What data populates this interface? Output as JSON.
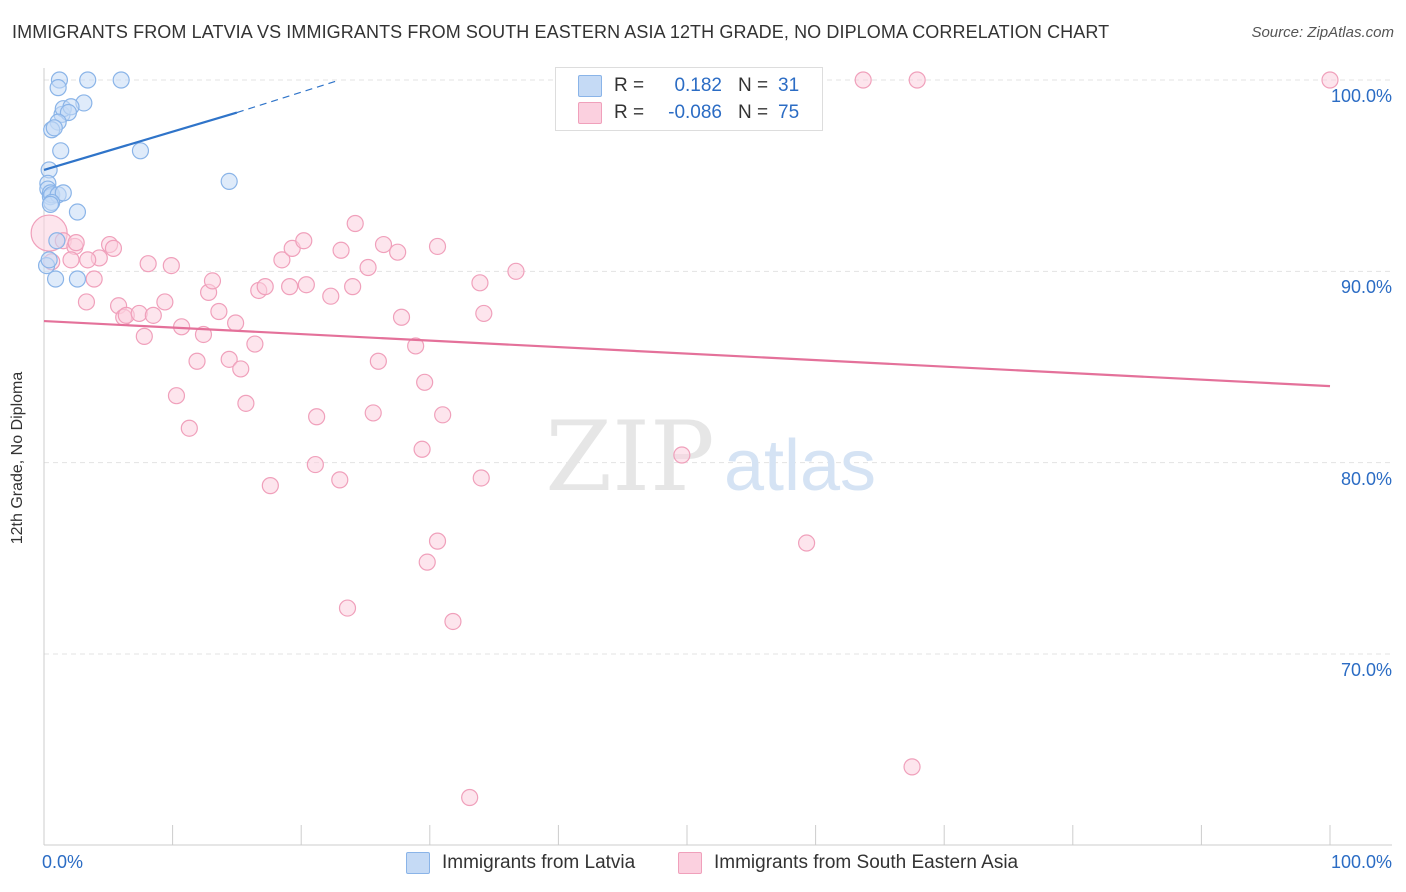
{
  "title": "IMMIGRANTS FROM LATVIA VS IMMIGRANTS FROM SOUTH EASTERN ASIA 12TH GRADE, NO DIPLOMA CORRELATION CHART",
  "source": "Source: ZipAtlas.com",
  "watermark": {
    "zip": "ZIP",
    "atlas": "atlas"
  },
  "legend": {
    "r_label": "R =",
    "n_label": "N =",
    "rows": [
      {
        "name": "Immigrants from Latvia",
        "r": "0.182",
        "n": "31",
        "color": "#8ab4e8",
        "fill": "#c5daf5"
      },
      {
        "name": "Immigrants from South Eastern Asia",
        "r": "-0.086",
        "n": "75",
        "color": "#f0a0bb",
        "fill": "#fbd0df"
      }
    ]
  },
  "chart_data": {
    "type": "scatter",
    "title": "IMMIGRANTS FROM LATVIA VS IMMIGRANTS FROM SOUTH EASTERN ASIA 12TH GRADE, NO DIPLOMA CORRELATION CHART",
    "xlabel": "",
    "ylabel": "12th Grade, No Diploma",
    "xlim": [
      0,
      100
    ],
    "ylim": [
      60.5,
      102
    ],
    "x_tick_labels": [
      "0.0%",
      "100.0%"
    ],
    "y_ticks": [
      70,
      80,
      90,
      100
    ],
    "y_tick_labels": [
      "70.0%",
      "80.0%",
      "90.0%",
      "100.0%"
    ],
    "grid": true,
    "series": [
      {
        "name": "Immigrants from Latvia",
        "color": "#8ab4e8",
        "fill": "#c5daf5",
        "trend": {
          "x": [
            0,
            15
          ],
          "y": [
            95.3,
            98.3
          ],
          "dash_to": [
            23,
            100
          ]
        },
        "points": [
          [
            1.2,
            100
          ],
          [
            3.4,
            100
          ],
          [
            6,
            100
          ],
          [
            1.1,
            99.6
          ],
          [
            3.1,
            98.8
          ],
          [
            1.4,
            98.2
          ],
          [
            1.5,
            98.5
          ],
          [
            2.1,
            98.6
          ],
          [
            1.9,
            98.3
          ],
          [
            1.1,
            97.8
          ],
          [
            0.6,
            97.4
          ],
          [
            0.8,
            97.5
          ],
          [
            1.3,
            96.3
          ],
          [
            7.5,
            96.3
          ],
          [
            0.4,
            95.3
          ],
          [
            14.4,
            94.7
          ],
          [
            0.3,
            94.6
          ],
          [
            0.3,
            94.3
          ],
          [
            0.5,
            94.1
          ],
          [
            0.5,
            93.9
          ],
          [
            0.6,
            94.0
          ],
          [
            1.1,
            94.0
          ],
          [
            1.5,
            94.1
          ],
          [
            0.6,
            93.6
          ],
          [
            0.5,
            93.5
          ],
          [
            2.6,
            93.1
          ],
          [
            1,
            91.6
          ],
          [
            2.6,
            89.6
          ],
          [
            0.9,
            89.6
          ],
          [
            0.2,
            90.3
          ],
          [
            0.4,
            90.6
          ]
        ]
      },
      {
        "name": "Immigrants from South Eastern Asia",
        "color": "#f0a0bb",
        "fill": "#fbd0df",
        "trend": {
          "x": [
            0,
            100
          ],
          "y": [
            87.4,
            84.0
          ]
        },
        "points": [
          [
            63.7,
            100
          ],
          [
            67.9,
            100
          ],
          [
            100,
            100
          ],
          [
            0.4,
            92
          ],
          [
            0.6,
            90.5
          ],
          [
            1.5,
            91.6
          ],
          [
            2.4,
            91.3
          ],
          [
            2.1,
            90.6
          ],
          [
            4.3,
            90.7
          ],
          [
            5.1,
            91.4
          ],
          [
            5.4,
            91.2
          ],
          [
            2.5,
            91.5
          ],
          [
            3.4,
            90.6
          ],
          [
            3.9,
            89.6
          ],
          [
            3.3,
            88.4
          ],
          [
            5.8,
            88.2
          ],
          [
            6.2,
            87.6
          ],
          [
            6.4,
            87.7
          ],
          [
            7.4,
            87.8
          ],
          [
            7.8,
            86.6
          ],
          [
            8.5,
            87.7
          ],
          [
            8.1,
            90.4
          ],
          [
            9.4,
            88.4
          ],
          [
            9.9,
            90.3
          ],
          [
            10.7,
            87.1
          ],
          [
            11.9,
            85.3
          ],
          [
            12.4,
            86.7
          ],
          [
            12.8,
            88.9
          ],
          [
            13.1,
            89.5
          ],
          [
            13.6,
            87.9
          ],
          [
            14.4,
            85.4
          ],
          [
            14.9,
            87.3
          ],
          [
            15.3,
            84.9
          ],
          [
            15.7,
            83.1
          ],
          [
            16.4,
            86.2
          ],
          [
            16.7,
            89.0
          ],
          [
            17.2,
            89.2
          ],
          [
            18.5,
            90.6
          ],
          [
            19.1,
            89.2
          ],
          [
            19.3,
            91.2
          ],
          [
            20.2,
            91.6
          ],
          [
            20.4,
            89.3
          ],
          [
            22.3,
            88.7
          ],
          [
            23.1,
            91.1
          ],
          [
            24.2,
            92.5
          ],
          [
            24,
            89.2
          ],
          [
            25.2,
            90.2
          ],
          [
            26,
            85.3
          ],
          [
            26.4,
            91.4
          ],
          [
            27.5,
            91.0
          ],
          [
            27.8,
            87.6
          ],
          [
            28.9,
            86.1
          ],
          [
            30.6,
            91.3
          ],
          [
            29.6,
            84.2
          ],
          [
            10.3,
            83.5
          ],
          [
            11.3,
            81.8
          ],
          [
            17.6,
            78.8
          ],
          [
            21.2,
            82.4
          ],
          [
            21.1,
            79.9
          ],
          [
            23,
            79.1
          ],
          [
            25.6,
            82.6
          ],
          [
            29.4,
            80.7
          ],
          [
            31,
            82.5
          ],
          [
            33.9,
            89.4
          ],
          [
            34.2,
            87.8
          ],
          [
            36.7,
            90.0
          ],
          [
            34,
            79.2
          ],
          [
            30.6,
            75.9
          ],
          [
            29.8,
            74.8
          ],
          [
            23.6,
            72.4
          ],
          [
            31.8,
            71.7
          ],
          [
            49.6,
            80.4
          ],
          [
            59.3,
            75.8
          ],
          [
            67.5,
            64.1
          ],
          [
            33.1,
            62.5
          ]
        ]
      }
    ]
  }
}
